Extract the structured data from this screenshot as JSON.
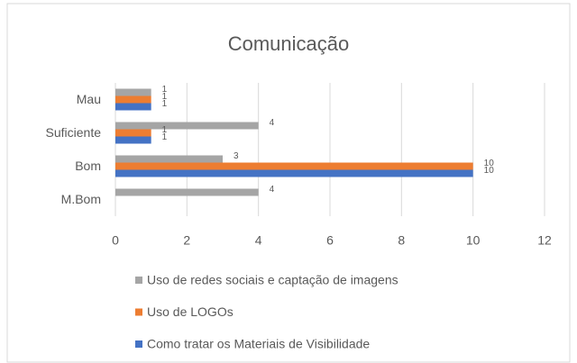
{
  "chart_data": {
    "type": "barh",
    "title": "Comunicação",
    "categories": [
      "M.Bom",
      "Bom",
      "Suficiente",
      "Mau"
    ],
    "series": [
      {
        "name": "Uso de redes sociais e captação de imagens",
        "color": "#a5a5a5",
        "values": [
          4,
          3,
          4,
          1
        ]
      },
      {
        "name": "Uso de LOGOs",
        "color": "#ed7d31",
        "values": [
          null,
          10,
          1,
          1
        ]
      },
      {
        "name": "Como tratar os Materiais de Visibilidade",
        "color": "#4472c4",
        "values": [
          null,
          10,
          1,
          1
        ]
      }
    ],
    "xlim": [
      0,
      12
    ],
    "xticks": [
      0,
      2,
      4,
      6,
      8,
      10,
      12
    ],
    "grid": true,
    "legend": "bottom"
  }
}
